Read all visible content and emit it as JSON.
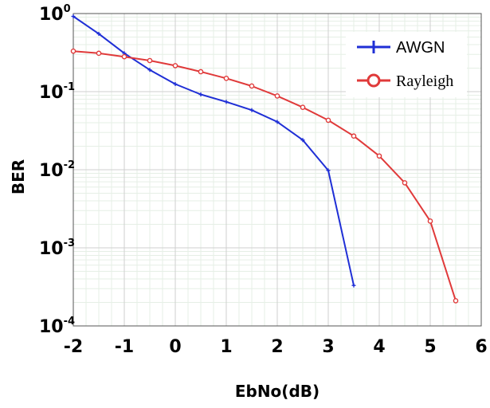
{
  "chart_data": {
    "type": "line",
    "title": "",
    "xlabel": "EbNo(dB)",
    "ylabel": "BER",
    "xlim": [
      -2,
      6
    ],
    "ylim": [
      0.0001,
      1
    ],
    "y_scale": "log",
    "grid": true,
    "x_ticks": [
      "-2",
      "-1",
      "0",
      "1",
      "2",
      "3",
      "4",
      "5",
      "6"
    ],
    "y_ticks": [
      {
        "base": "10",
        "exp": "0"
      },
      {
        "base": "10",
        "exp": "-1"
      },
      {
        "base": "10",
        "exp": "-2"
      },
      {
        "base": "10",
        "exp": "-3"
      },
      {
        "base": "10",
        "exp": "-4"
      }
    ],
    "legend_position": "top-right",
    "series": [
      {
        "name": "AWGN",
        "color": "#1f2fd6",
        "marker": "plus",
        "x": [
          -2,
          -1.5,
          -1,
          -0.5,
          0,
          0.5,
          1,
          1.5,
          2,
          2.5,
          3,
          3.5
        ],
        "y": [
          0.92,
          0.55,
          0.31,
          0.19,
          0.125,
          0.092,
          0.074,
          0.058,
          0.041,
          0.024,
          0.0098,
          0.00033
        ]
      },
      {
        "name": "Rayleigh",
        "color": "#e03a3a",
        "marker": "circle",
        "x": [
          -2,
          -1.5,
          -1,
          -0.5,
          0,
          0.5,
          1,
          1.5,
          2,
          2.5,
          3,
          3.5,
          4,
          4.5,
          5,
          5.5
        ],
        "y": [
          0.33,
          0.31,
          0.28,
          0.25,
          0.215,
          0.18,
          0.148,
          0.118,
          0.088,
          0.063,
          0.043,
          0.027,
          0.015,
          0.0068,
          0.0022,
          0.00021
        ]
      }
    ]
  }
}
